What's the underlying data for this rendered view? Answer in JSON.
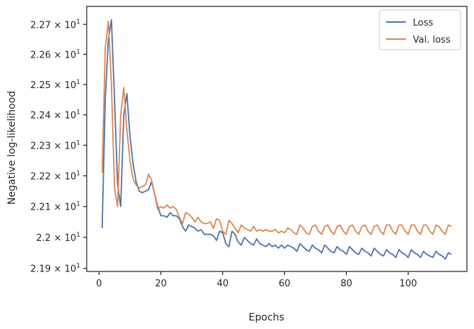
{
  "chart_data": {
    "type": "line",
    "title": "",
    "xlabel": "Epochs",
    "ylabel": "Negative log-likelihood",
    "xlim": [
      -4,
      119
    ],
    "ylim": [
      21.89,
      22.76
    ],
    "yscale": "log",
    "grid": false,
    "legend_position": "top-right",
    "x_ticks": [
      0,
      20,
      40,
      60,
      80,
      100
    ],
    "y_ticks": [
      21.9,
      22.0,
      22.1,
      22.2,
      22.3,
      22.4,
      22.5,
      22.6,
      22.7
    ],
    "y_tick_labels": [
      {
        "mantissa": "2.19",
        "base": "10",
        "exp": "1"
      },
      {
        "mantissa": "2.2",
        "base": "10",
        "exp": "1"
      },
      {
        "mantissa": "2.21",
        "base": "10",
        "exp": "1"
      },
      {
        "mantissa": "2.22",
        "base": "10",
        "exp": "1"
      },
      {
        "mantissa": "2.23",
        "base": "10",
        "exp": "1"
      },
      {
        "mantissa": "2.24",
        "base": "10",
        "exp": "1"
      },
      {
        "mantissa": "2.25",
        "base": "10",
        "exp": "1"
      },
      {
        "mantissa": "2.26",
        "base": "10",
        "exp": "1"
      },
      {
        "mantissa": "2.27",
        "base": "10",
        "exp": "1"
      }
    ],
    "series": [
      {
        "name": "Loss",
        "color": "#4c72b0",
        "values": [
          22.03,
          22.45,
          22.65,
          22.715,
          22.45,
          22.17,
          22.1,
          22.4,
          22.47,
          22.33,
          22.24,
          22.18,
          22.15,
          22.145,
          22.15,
          22.155,
          22.18,
          22.14,
          22.1,
          22.07,
          22.07,
          22.065,
          22.08,
          22.07,
          22.07,
          22.06,
          22.035,
          22.02,
          22.04,
          22.035,
          22.03,
          22.02,
          22.025,
          22.01,
          22.01,
          22.01,
          22.005,
          21.99,
          22.02,
          22.015,
          21.98,
          21.97,
          22.02,
          22.01,
          21.985,
          21.975,
          22.0,
          21.99,
          21.98,
          21.975,
          21.995,
          21.98,
          21.975,
          21.97,
          21.98,
          21.97,
          21.975,
          21.965,
          21.975,
          21.965,
          21.975,
          21.97,
          21.965,
          21.955,
          21.98,
          21.97,
          21.96,
          21.955,
          21.975,
          21.965,
          21.96,
          21.95,
          21.975,
          21.965,
          21.955,
          21.95,
          21.97,
          21.96,
          21.955,
          21.945,
          21.97,
          21.96,
          21.95,
          21.945,
          21.965,
          21.955,
          21.95,
          21.94,
          21.965,
          21.955,
          21.945,
          21.94,
          21.96,
          21.95,
          21.945,
          21.935,
          21.96,
          21.95,
          21.945,
          21.935,
          21.96,
          21.95,
          21.945,
          21.935,
          21.955,
          21.945,
          21.94,
          21.935,
          21.955,
          21.945,
          21.94,
          21.93,
          21.95,
          21.945
        ]
      },
      {
        "name": "Val. loss",
        "color": "#dd8452",
        "values": [
          22.21,
          22.62,
          22.71,
          22.5,
          22.16,
          22.1,
          22.4,
          22.49,
          22.35,
          22.25,
          22.19,
          22.17,
          22.16,
          22.165,
          22.17,
          22.205,
          22.185,
          22.14,
          22.09,
          22.1,
          22.095,
          22.105,
          22.095,
          22.1,
          22.09,
          22.065,
          22.045,
          22.08,
          22.075,
          22.065,
          22.05,
          22.065,
          22.05,
          22.045,
          22.045,
          22.05,
          22.03,
          22.06,
          22.055,
          22.02,
          22.01,
          22.055,
          22.045,
          22.03,
          22.015,
          22.04,
          22.03,
          22.025,
          22.02,
          22.035,
          22.02,
          22.025,
          22.02,
          22.025,
          22.02,
          22.02,
          22.025,
          22.015,
          22.02,
          22.015,
          22.03,
          22.025,
          22.015,
          22.01,
          22.04,
          22.03,
          22.015,
          22.01,
          22.035,
          22.04,
          22.02,
          22.01,
          22.035,
          22.04,
          22.02,
          22.01,
          22.035,
          22.04,
          22.02,
          22.01,
          22.035,
          22.04,
          22.02,
          22.01,
          22.035,
          22.04,
          22.02,
          22.01,
          22.035,
          22.04,
          22.02,
          22.01,
          22.04,
          22.04,
          22.02,
          22.01,
          22.04,
          22.04,
          22.02,
          22.01,
          22.04,
          22.04,
          22.02,
          22.01,
          22.04,
          22.04,
          22.02,
          22.01,
          22.04,
          22.035,
          22.02,
          22.01,
          22.04,
          22.035
        ]
      }
    ]
  }
}
